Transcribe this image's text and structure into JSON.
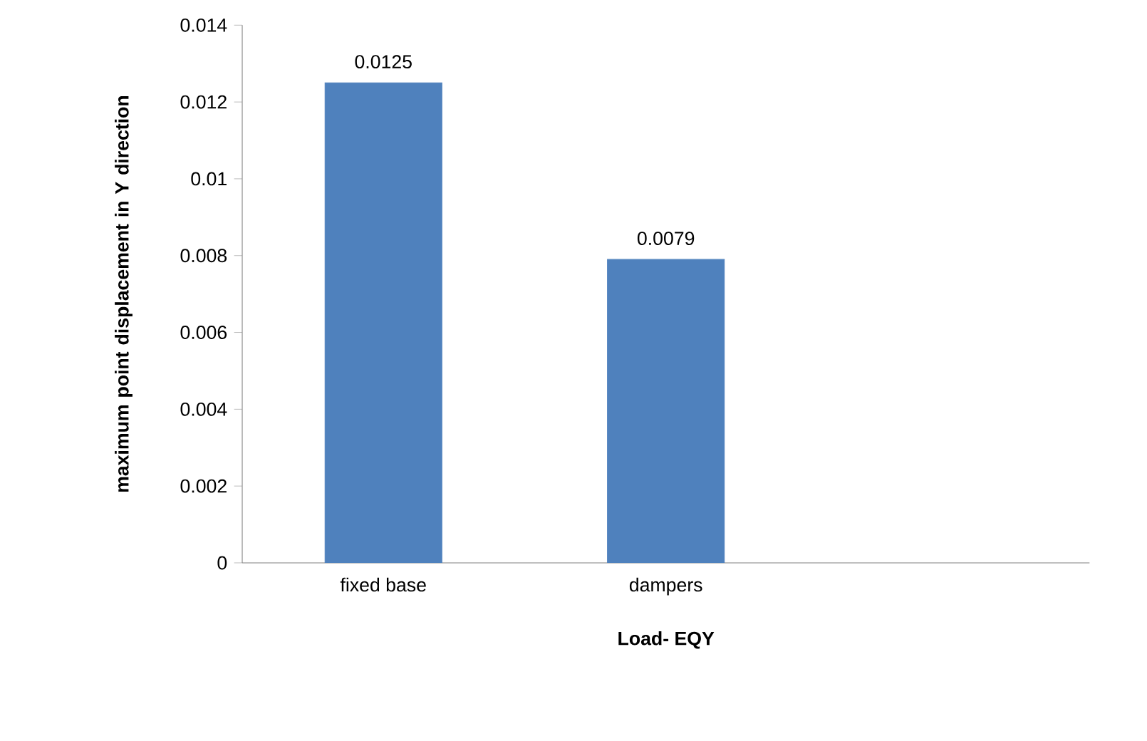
{
  "chart_data": {
    "type": "bar",
    "xlabel": "Load- EQY",
    "ylabel": "maximum point displacement in Y direction",
    "categories": [
      "fixed base",
      "dampers",
      null
    ],
    "values": [
      0.0125,
      0.0079,
      null
    ],
    "color": "#4f81bd",
    "data_labels": true,
    "grid": false,
    "ylim": [
      0,
      0.014
    ],
    "yticks": [
      0,
      0.002,
      0.004,
      0.006,
      0.008,
      0.01,
      0.012,
      0.014
    ]
  }
}
